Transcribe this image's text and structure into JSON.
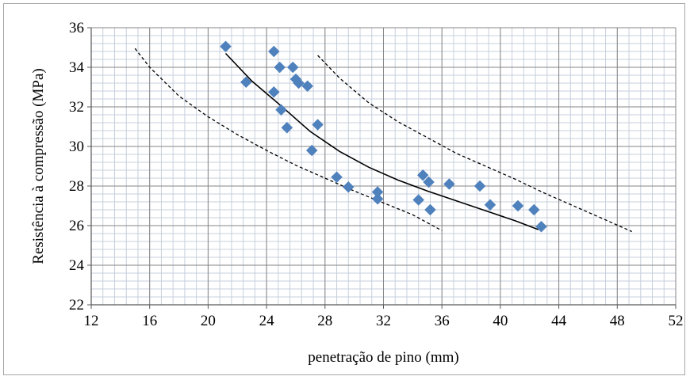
{
  "chart_data": {
    "type": "scatter",
    "title": "",
    "xlabel": "penetração de pino  (mm)",
    "ylabel": "Resistência  à compressão  (MPa)",
    "xlim": [
      12,
      52
    ],
    "ylim": [
      22,
      36
    ],
    "x_ticks": [
      "12",
      "16",
      "20",
      "24",
      "28",
      "32",
      "36",
      "40",
      "44",
      "48",
      "52"
    ],
    "y_ticks": [
      "22",
      "24",
      "26",
      "28",
      "30",
      "32",
      "34",
      "36"
    ],
    "grid": true,
    "legend": "none",
    "marker_color": "#4f81bd",
    "series": [
      {
        "type": "scatter",
        "marker": "diamond",
        "points": [
          [
            21.2,
            35.05
          ],
          [
            22.6,
            33.25
          ],
          [
            24.5,
            34.8
          ],
          [
            24.9,
            34.0
          ],
          [
            25.8,
            34.0
          ],
          [
            26.0,
            33.4
          ],
          [
            26.2,
            33.2
          ],
          [
            26.8,
            33.05
          ],
          [
            24.5,
            32.75
          ],
          [
            25.0,
            31.85
          ],
          [
            27.5,
            31.1
          ],
          [
            25.4,
            30.95
          ],
          [
            27.1,
            29.8
          ],
          [
            28.8,
            28.45
          ],
          [
            29.6,
            27.95
          ],
          [
            31.6,
            27.7
          ],
          [
            31.6,
            27.35
          ],
          [
            34.4,
            27.3
          ],
          [
            34.7,
            28.55
          ],
          [
            35.1,
            28.2
          ],
          [
            35.2,
            26.8
          ],
          [
            36.5,
            28.1
          ],
          [
            38.6,
            28.0
          ],
          [
            39.3,
            27.05
          ],
          [
            41.2,
            27.0
          ],
          [
            42.3,
            26.8
          ],
          [
            42.8,
            25.95
          ]
        ]
      },
      {
        "type": "line",
        "style": "solid",
        "points": [
          [
            21.2,
            34.7
          ],
          [
            23,
            33.3
          ],
          [
            25,
            32.05
          ],
          [
            27,
            30.75
          ],
          [
            29,
            29.75
          ],
          [
            31,
            28.95
          ],
          [
            33,
            28.3
          ],
          [
            35,
            27.75
          ],
          [
            37,
            27.25
          ],
          [
            39,
            26.75
          ],
          [
            41,
            26.25
          ],
          [
            42.6,
            25.8
          ]
        ]
      },
      {
        "type": "line",
        "style": "dashed",
        "points": [
          [
            15,
            34.95
          ],
          [
            16,
            34.0
          ],
          [
            18,
            32.55
          ],
          [
            20,
            31.5
          ],
          [
            22,
            30.6
          ],
          [
            24,
            29.8
          ],
          [
            26,
            29.05
          ],
          [
            28,
            28.4
          ],
          [
            30,
            27.75
          ],
          [
            32,
            27.15
          ],
          [
            34,
            26.55
          ],
          [
            36,
            25.75
          ]
        ]
      },
      {
        "type": "line",
        "style": "dashed",
        "points": [
          [
            27.5,
            34.6
          ],
          [
            29,
            33.45
          ],
          [
            31,
            32.2
          ],
          [
            33,
            31.25
          ],
          [
            35,
            30.45
          ],
          [
            37,
            29.65
          ],
          [
            39,
            29.0
          ],
          [
            41,
            28.35
          ],
          [
            43,
            27.65
          ],
          [
            45,
            27.0
          ],
          [
            47,
            26.35
          ],
          [
            49,
            25.7
          ]
        ]
      }
    ]
  }
}
